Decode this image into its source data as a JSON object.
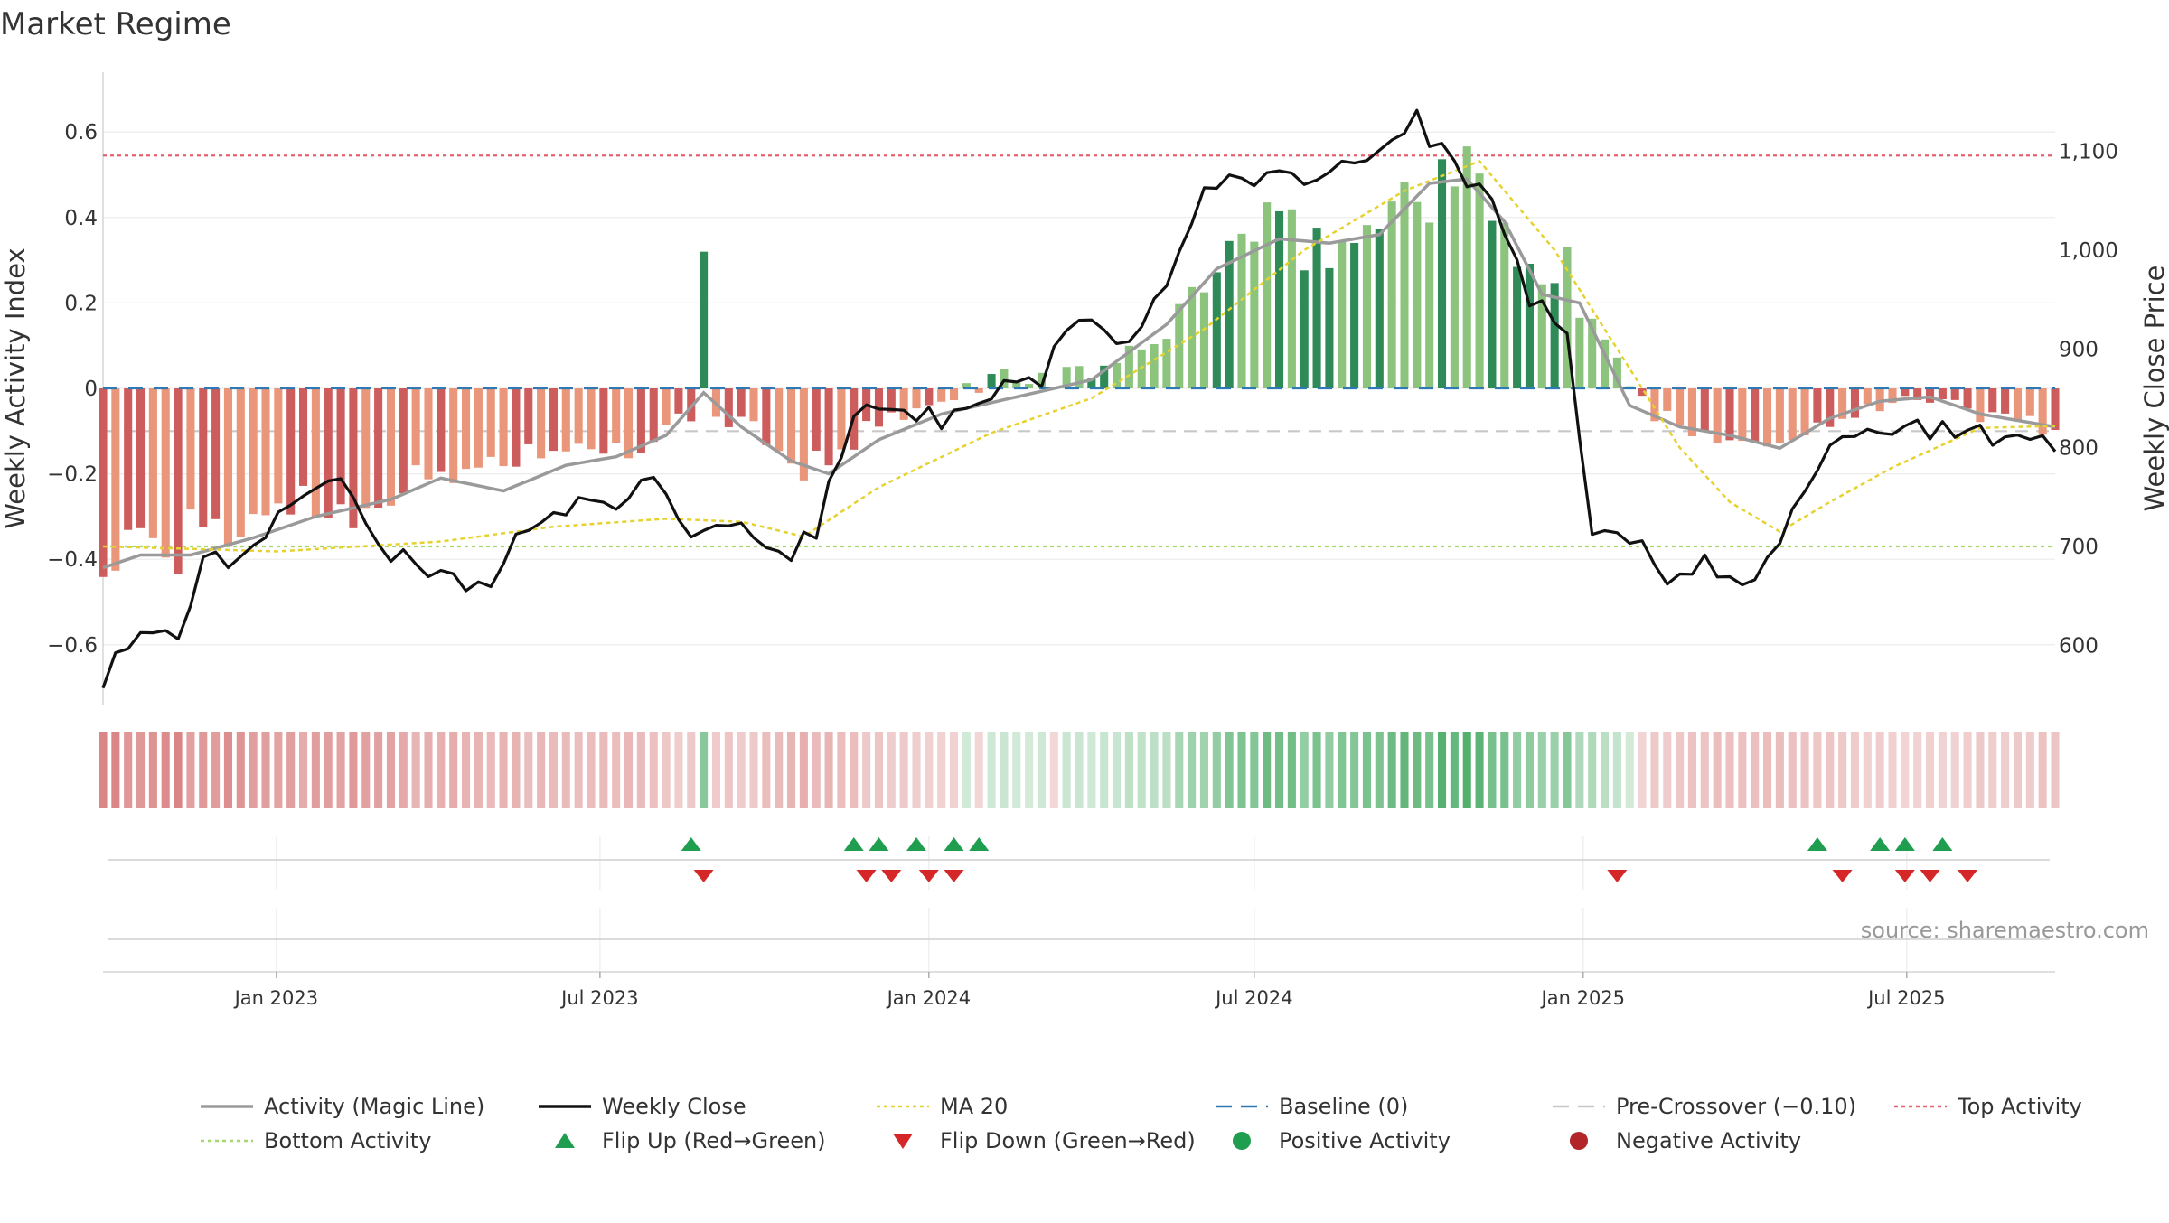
{
  "chart_data": {
    "type": "bar",
    "title": "Market Regime",
    "ylabel_left": "Weekly Activity Index",
    "ylabel_right": "Weekly Close Price",
    "ylim_left": [
      -0.74,
      0.74
    ],
    "ylim_right": [
      540,
      1180
    ],
    "yticks_left": [
      0.6,
      0.4,
      0.2,
      0,
      -0.2,
      -0.4,
      -0.6
    ],
    "yticks_left_labels": [
      "0.6",
      "0.4",
      "0.2",
      "0",
      "−0.2",
      "−0.4",
      "−0.6"
    ],
    "yticks_right": [
      1100,
      1000,
      900,
      800,
      700,
      600
    ],
    "yticks_right_labels": [
      "1,100",
      "1,000",
      "900",
      "800",
      "700",
      "600"
    ],
    "x_start": "2022-09-26",
    "x_end": "2025-09-22",
    "xticks": [
      {
        "date": "2023-01-01",
        "label": "Jan 2023"
      },
      {
        "date": "2023-07-01",
        "label": "Jul 2023"
      },
      {
        "date": "2024-01-01",
        "label": "Jan 2024"
      },
      {
        "date": "2024-07-01",
        "label": "Jul 2024"
      },
      {
        "date": "2025-01-01",
        "label": "Jan 2025"
      },
      {
        "date": "2025-07-01",
        "label": "Jul 2025"
      }
    ],
    "grid": true,
    "legend_position": "bottom",
    "top_activity": 0.545,
    "bottom_activity": -0.37,
    "pre_crossover": -0.1,
    "baseline": 0,
    "activity_keys": [
      {
        "date": "2022-09-26",
        "value": -0.42
      },
      {
        "date": "2022-10-10",
        "value": -0.38
      },
      {
        "date": "2022-11-07",
        "value": -0.37
      },
      {
        "date": "2022-12-05",
        "value": -0.34
      },
      {
        "date": "2023-01-02",
        "value": -0.26
      },
      {
        "date": "2023-02-06",
        "value": -0.28
      },
      {
        "date": "2023-03-06",
        "value": -0.24
      },
      {
        "date": "2023-04-03",
        "value": -0.21
      },
      {
        "date": "2023-05-01",
        "value": -0.17
      },
      {
        "date": "2023-06-05",
        "value": -0.14
      },
      {
        "date": "2023-07-03",
        "value": -0.17
      },
      {
        "date": "2023-07-31",
        "value": -0.12
      },
      {
        "date": "2023-08-21",
        "value": -0.06
      },
      {
        "date": "2023-09-11",
        "value": -0.07
      },
      {
        "date": "2023-10-09",
        "value": -0.13
      },
      {
        "date": "2023-10-23",
        "value": -0.19
      },
      {
        "date": "2023-11-06",
        "value": -0.18
      },
      {
        "date": "2023-11-27",
        "value": -0.1
      },
      {
        "date": "2024-01-01",
        "value": -0.05
      },
      {
        "date": "2024-02-05",
        "value": 0.03
      },
      {
        "date": "2024-03-11",
        "value": 0.02
      },
      {
        "date": "2024-04-08",
        "value": 0.05
      },
      {
        "date": "2024-05-06",
        "value": 0.1
      },
      {
        "date": "2024-06-03",
        "value": 0.26
      },
      {
        "date": "2024-07-01",
        "value": 0.37
      },
      {
        "date": "2024-08-05",
        "value": 0.33
      },
      {
        "date": "2024-09-02",
        "value": 0.36
      },
      {
        "date": "2024-09-30",
        "value": 0.49
      },
      {
        "date": "2024-10-21",
        "value": 0.5
      },
      {
        "date": "2024-11-18",
        "value": 0.4
      },
      {
        "date": "2024-12-09",
        "value": 0.25
      },
      {
        "date": "2024-12-30",
        "value": 0.19
      },
      {
        "date": "2025-01-20",
        "value": 0.06
      },
      {
        "date": "2025-02-10",
        "value": -0.07
      },
      {
        "date": "2025-03-10",
        "value": -0.1
      },
      {
        "date": "2025-04-07",
        "value": -0.12
      },
      {
        "date": "2025-04-21",
        "value": -0.14
      },
      {
        "date": "2025-05-19",
        "value": -0.07
      },
      {
        "date": "2025-06-16",
        "value": -0.03
      },
      {
        "date": "2025-07-14",
        "value": -0.03
      },
      {
        "date": "2025-08-11",
        "value": -0.06
      },
      {
        "date": "2025-09-22",
        "value": -0.09
      }
    ],
    "bar_spikes": [
      {
        "date": "2023-08-28",
        "value": 0.32
      },
      {
        "date": "2024-12-23",
        "value": 0.33
      }
    ],
    "close_keys": [
      {
        "date": "2022-09-26",
        "value": 565
      },
      {
        "date": "2022-10-10",
        "value": 600
      },
      {
        "date": "2022-11-07",
        "value": 605
      },
      {
        "date": "2022-11-21",
        "value": 680
      },
      {
        "date": "2022-12-12",
        "value": 690
      },
      {
        "date": "2023-01-09",
        "value": 750
      },
      {
        "date": "2023-02-06",
        "value": 760
      },
      {
        "date": "2023-02-27",
        "value": 700
      },
      {
        "date": "2023-03-27",
        "value": 680
      },
      {
        "date": "2023-04-24",
        "value": 655
      },
      {
        "date": "2023-05-22",
        "value": 720
      },
      {
        "date": "2023-06-19",
        "value": 750
      },
      {
        "date": "2023-07-10",
        "value": 745
      },
      {
        "date": "2023-07-31",
        "value": 765
      },
      {
        "date": "2023-08-21",
        "value": 715
      },
      {
        "date": "2023-09-18",
        "value": 715
      },
      {
        "date": "2023-10-09",
        "value": 685
      },
      {
        "date": "2023-10-30",
        "value": 715
      },
      {
        "date": "2023-11-20",
        "value": 840
      },
      {
        "date": "2023-12-18",
        "value": 840
      },
      {
        "date": "2024-01-08",
        "value": 825
      },
      {
        "date": "2024-02-05",
        "value": 855
      },
      {
        "date": "2024-03-04",
        "value": 870
      },
      {
        "date": "2024-03-25",
        "value": 940
      },
      {
        "date": "2024-04-22",
        "value": 905
      },
      {
        "date": "2024-05-13",
        "value": 970
      },
      {
        "date": "2024-06-03",
        "value": 1060
      },
      {
        "date": "2024-06-24",
        "value": 1070
      },
      {
        "date": "2024-07-22",
        "value": 1075
      },
      {
        "date": "2024-08-19",
        "value": 1080
      },
      {
        "date": "2024-09-09",
        "value": 1090
      },
      {
        "date": "2024-09-30",
        "value": 1130
      },
      {
        "date": "2024-10-21",
        "value": 1080
      },
      {
        "date": "2024-11-11",
        "value": 1050
      },
      {
        "date": "2024-12-02",
        "value": 950
      },
      {
        "date": "2024-12-23",
        "value": 920
      },
      {
        "date": "2025-01-06",
        "value": 720
      },
      {
        "date": "2025-01-27",
        "value": 710
      },
      {
        "date": "2025-02-17",
        "value": 670
      },
      {
        "date": "2025-03-10",
        "value": 680
      },
      {
        "date": "2025-03-31",
        "value": 650
      },
      {
        "date": "2025-04-21",
        "value": 700
      },
      {
        "date": "2025-05-12",
        "value": 780
      },
      {
        "date": "2025-05-26",
        "value": 810
      },
      {
        "date": "2025-06-23",
        "value": 820
      },
      {
        "date": "2025-07-14",
        "value": 815
      },
      {
        "date": "2025-08-11",
        "value": 820
      },
      {
        "date": "2025-08-25",
        "value": 805
      },
      {
        "date": "2025-09-22",
        "value": 807
      }
    ],
    "magic_keys": [
      {
        "date": "2022-09-26",
        "value": -0.42
      },
      {
        "date": "2022-10-17",
        "value": -0.39
      },
      {
        "date": "2022-11-14",
        "value": -0.39
      },
      {
        "date": "2022-12-19",
        "value": -0.35
      },
      {
        "date": "2023-01-23",
        "value": -0.3
      },
      {
        "date": "2023-03-06",
        "value": -0.26
      },
      {
        "date": "2023-04-03",
        "value": -0.21
      },
      {
        "date": "2023-05-08",
        "value": -0.24
      },
      {
        "date": "2023-06-12",
        "value": -0.18
      },
      {
        "date": "2023-07-10",
        "value": -0.16
      },
      {
        "date": "2023-08-07",
        "value": -0.11
      },
      {
        "date": "2023-08-28",
        "value": -0.01
      },
      {
        "date": "2023-09-18",
        "value": -0.09
      },
      {
        "date": "2023-10-16",
        "value": -0.17
      },
      {
        "date": "2023-11-06",
        "value": -0.2
      },
      {
        "date": "2023-12-04",
        "value": -0.12
      },
      {
        "date": "2024-01-08",
        "value": -0.06
      },
      {
        "date": "2024-02-19",
        "value": -0.02
      },
      {
        "date": "2024-04-01",
        "value": 0.02
      },
      {
        "date": "2024-05-13",
        "value": 0.15
      },
      {
        "date": "2024-06-10",
        "value": 0.28
      },
      {
        "date": "2024-07-15",
        "value": 0.35
      },
      {
        "date": "2024-08-12",
        "value": 0.34
      },
      {
        "date": "2024-09-09",
        "value": 0.36
      },
      {
        "date": "2024-10-07",
        "value": 0.48
      },
      {
        "date": "2024-10-28",
        "value": 0.49
      },
      {
        "date": "2024-11-18",
        "value": 0.39
      },
      {
        "date": "2024-12-09",
        "value": 0.22
      },
      {
        "date": "2024-12-30",
        "value": 0.2
      },
      {
        "date": "2025-01-27",
        "value": -0.04
      },
      {
        "date": "2025-02-24",
        "value": -0.09
      },
      {
        "date": "2025-03-24",
        "value": -0.11
      },
      {
        "date": "2025-04-21",
        "value": -0.14
      },
      {
        "date": "2025-05-19",
        "value": -0.07
      },
      {
        "date": "2025-06-16",
        "value": -0.03
      },
      {
        "date": "2025-07-14",
        "value": -0.02
      },
      {
        "date": "2025-08-11",
        "value": -0.06
      },
      {
        "date": "2025-09-22",
        "value": -0.09
      }
    ],
    "ma20_keys": [
      {
        "date": "2022-09-26",
        "value": 700
      },
      {
        "date": "2023-01-02",
        "value": 695
      },
      {
        "date": "2023-04-03",
        "value": 705
      },
      {
        "date": "2023-06-05",
        "value": 720
      },
      {
        "date": "2023-08-07",
        "value": 728
      },
      {
        "date": "2023-09-18",
        "value": 725
      },
      {
        "date": "2023-10-23",
        "value": 710
      },
      {
        "date": "2023-12-04",
        "value": 760
      },
      {
        "date": "2024-02-05",
        "value": 815
      },
      {
        "date": "2024-04-01",
        "value": 850
      },
      {
        "date": "2024-06-03",
        "value": 920
      },
      {
        "date": "2024-07-29",
        "value": 1000
      },
      {
        "date": "2024-09-23",
        "value": 1060
      },
      {
        "date": "2024-11-04",
        "value": 1090
      },
      {
        "date": "2024-12-16",
        "value": 1000
      },
      {
        "date": "2025-01-20",
        "value": 900
      },
      {
        "date": "2025-02-24",
        "value": 800
      },
      {
        "date": "2025-03-24",
        "value": 745
      },
      {
        "date": "2025-04-21",
        "value": 715
      },
      {
        "date": "2025-05-19",
        "value": 745
      },
      {
        "date": "2025-06-23",
        "value": 780
      },
      {
        "date": "2025-08-11",
        "value": 820
      },
      {
        "date": "2025-09-22",
        "value": 822
      }
    ],
    "flip_up_dates": [
      "2023-08-21",
      "2023-11-20",
      "2023-12-04",
      "2023-12-25",
      "2024-01-15",
      "2024-01-29",
      "2025-05-12",
      "2025-06-16",
      "2025-06-30",
      "2025-07-21"
    ],
    "flip_down_dates": [
      "2023-08-28",
      "2023-11-27",
      "2023-12-11",
      "2024-01-01",
      "2024-01-15",
      "2025-01-20",
      "2025-05-26",
      "2025-06-30",
      "2025-07-14",
      "2025-08-04"
    ],
    "legend": [
      {
        "label": "Activity (Magic Line)",
        "kind": "line",
        "color": "#9a9a9a"
      },
      {
        "label": "Weekly Close",
        "kind": "line",
        "color": "#111111"
      },
      {
        "label": "MA 20",
        "kind": "dotted",
        "color": "#e6d22e"
      },
      {
        "label": "Baseline (0)",
        "kind": "dashed",
        "color": "#2f79b5"
      },
      {
        "label": "Pre-Crossover (−0.10)",
        "kind": "dashed",
        "color": "#c8c8c8"
      },
      {
        "label": "Top Activity",
        "kind": "dotted",
        "color": "#e36470"
      },
      {
        "label": "Bottom Activity",
        "kind": "dotted",
        "color": "#a6d86e"
      },
      {
        "label": "Flip Up (Red→Green)",
        "kind": "tri-up",
        "color": "#1f9e50"
      },
      {
        "label": "Flip Down (Green→Red)",
        "kind": "tri-down",
        "color": "#d62728"
      },
      {
        "label": "Positive Activity",
        "kind": "dot",
        "color": "#1f9e50"
      },
      {
        "label": "Negative Activity",
        "kind": "dot",
        "color": "#b2262a"
      }
    ],
    "source": "source: sharemaestro.com"
  }
}
